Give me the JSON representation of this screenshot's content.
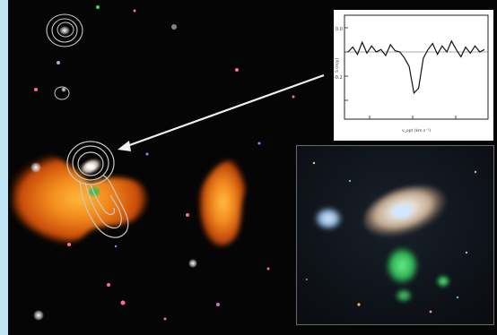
{
  "panel_frame_color": "#bfe4f3",
  "spectrum_plot": {
    "ytick_labels": [
      "0.0",
      "-0.2"
    ],
    "xtick_labels": [
      "",
      "",
      ""
    ],
    "ylabel": "S (mJy)",
    "xlabel": "v_opt (km s⁻¹)",
    "y_range": [
      -0.45,
      0.25
    ],
    "profile": [
      0.0,
      0.04,
      -0.02,
      0.08,
      -0.01,
      0.05,
      0.0,
      0.02,
      -0.03,
      0.06,
      0.01,
      0.0,
      -0.05,
      -0.12,
      -0.34,
      -0.3,
      -0.05,
      0.02,
      0.07,
      -0.02,
      0.05,
      0.0,
      0.09,
      0.02,
      -0.04,
      0.04,
      -0.01,
      0.05,
      0.0,
      0.02
    ]
  },
  "colors": {
    "sky": "#050505",
    "radio_lobe": "#e0590e",
    "radio_core": "#ffb830",
    "contour": "#c8c8c8",
    "galaxy": "#d8c8b8",
    "companion": "#a7ccec",
    "ionized_cloud": "#3fd26a",
    "arrow": "#f0f0f0"
  }
}
